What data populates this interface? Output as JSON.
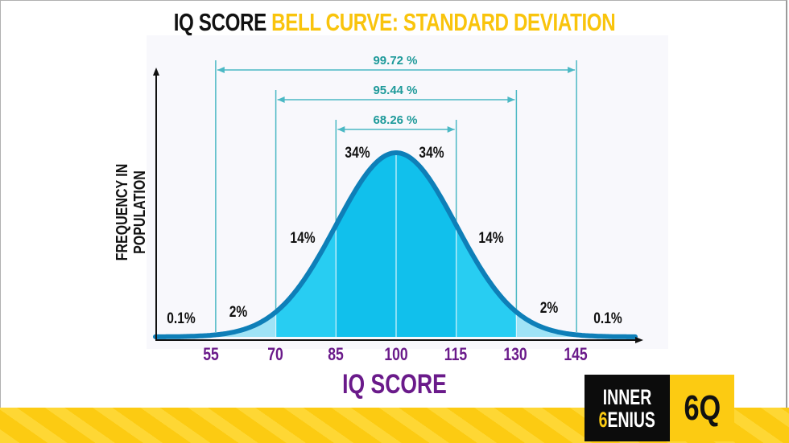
{
  "title": {
    "part1": "IQ SCORE",
    "part2": "BELL CURVE: STANDARD DEVIATION",
    "color_dark": "#111111",
    "color_accent": "#f9c40c"
  },
  "axes": {
    "ylabel": "FREQUENCY IN POPULATION",
    "xlabel": "IQ SCORE"
  },
  "ticks": [
    "55",
    "70",
    "85",
    "100",
    "115",
    "130",
    "145"
  ],
  "segments": {
    "far_left": "0.1%",
    "left_2": "2%",
    "left_14": "14%",
    "left_34": "34%",
    "right_34": "34%",
    "right_14": "14%",
    "right_2": "2%",
    "far_right": "0.1%"
  },
  "brackets": {
    "three_sd": "99.72 %",
    "two_sd": "95.44 %",
    "one_sd": "68.26 %"
  },
  "logo": {
    "line1": "INNER",
    "line2_first": "6",
    "line2_rest": "ENIUS",
    "mark": "6Q"
  },
  "colors": {
    "curve_stroke": "#0e7fb8",
    "fill_center": "#11c0ec",
    "fill_mid": "#28cdf2",
    "fill_tail": "#9fe3f6",
    "bracket": "#4bb8c4",
    "tick_label": "#6a1a8a",
    "brand_yellow": "#fccb12"
  },
  "chart_data": {
    "type": "area",
    "title": "IQ SCORE BELL CURVE: STANDARD DEVIATION",
    "xlabel": "IQ SCORE",
    "ylabel": "FREQUENCY IN POPULATION",
    "distribution": {
      "kind": "normal",
      "mean": 100,
      "sd": 15
    },
    "x_ticks": [
      55,
      70,
      85,
      100,
      115,
      130,
      145
    ],
    "segments": [
      {
        "range": "<55",
        "percent": 0.1
      },
      {
        "range": "55-70",
        "percent": 2
      },
      {
        "range": "70-85",
        "percent": 14
      },
      {
        "range": "85-100",
        "percent": 34
      },
      {
        "range": "100-115",
        "percent": 34
      },
      {
        "range": "115-130",
        "percent": 14
      },
      {
        "range": "130-145",
        "percent": 2
      },
      {
        "range": ">145",
        "percent": 0.1
      }
    ],
    "intervals": [
      {
        "label": "68.26 %",
        "from": 85,
        "to": 115
      },
      {
        "label": "95.44 %",
        "from": 70,
        "to": 130
      },
      {
        "label": "99.72 %",
        "from": 55,
        "to": 145
      }
    ],
    "grid": false,
    "legend": null
  }
}
